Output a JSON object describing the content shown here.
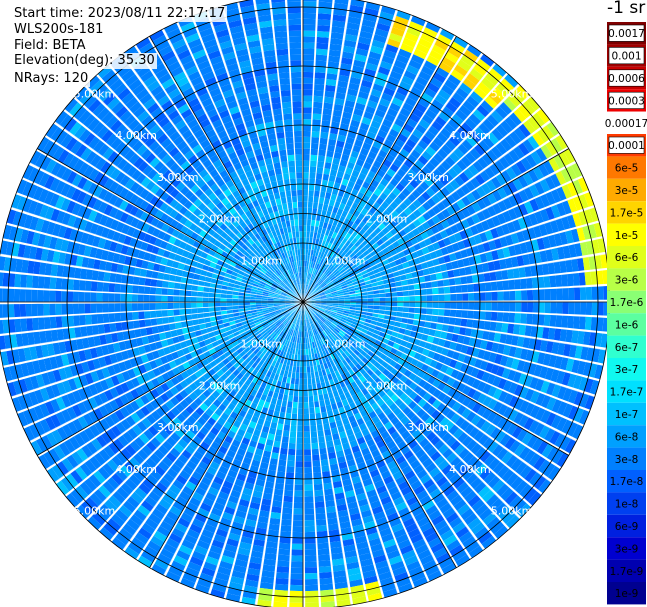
{
  "header": {
    "start_time": "Start time: 2023/08/11 22:17:17",
    "instrument": "WLS200s-181",
    "field": "Field: BETA",
    "elevation": "Elevation(deg): 35.30",
    "nrays": "NRays: 120"
  },
  "chart_data": {
    "type": "heatmap",
    "projection": "polar PPI",
    "title": "",
    "nrays": 120,
    "range_rings_km": [
      1.0,
      2.0,
      3.0,
      4.0,
      5.0
    ],
    "range_ring_labels": [
      "1.00km",
      "2.00km",
      "3.00km",
      "4.00km",
      "5.00km"
    ],
    "extra_ring_km": 1.5,
    "max_range_km": 5.2,
    "spokes_deg": [
      0,
      30,
      60,
      90,
      120,
      150,
      180,
      210,
      240,
      270,
      300,
      330
    ],
    "colorbar": {
      "unit_label": "-1 sr",
      "tick_labels": [
        "0.0017",
        "0.001",
        "0.0006",
        "0.0003",
        "0.00017",
        "0.0001",
        "6e-5",
        "3e-5",
        "1.7e-5",
        "1e-5",
        "6e-6",
        "3e-6",
        "1.7e-6",
        "1e-6",
        "6e-7",
        "3e-7",
        "1.7e-7",
        "1e-7",
        "6e-8",
        "3e-8",
        "1.7e-8",
        "1e-8",
        "6e-9",
        "3e-9",
        "1.7e-9",
        "1e-9"
      ],
      "colors": [
        "#800000",
        "#a00000",
        "#c80000",
        "#ee0000",
        "#ffffff",
        "#ff3a00",
        "#ff7800",
        "#ffaa00",
        "#ffd400",
        "#ffff00",
        "#e0ff1a",
        "#b8ff47",
        "#8aff74",
        "#5cffa0",
        "#30ffd0",
        "#10f8f0",
        "#00e0ff",
        "#00c0ff",
        "#00a0ff",
        "#0080ff",
        "#0060ff",
        "#0040f0",
        "#0020e0",
        "#0000d0",
        "#0000b0",
        "#000090"
      ]
    },
    "color_level_by_range_km": [
      {
        "range_km": 0.5,
        "level": 18
      },
      {
        "range_km": 1.5,
        "level": 18
      },
      {
        "range_km": 2.5,
        "level": 19
      },
      {
        "range_km": 3.5,
        "level": 19
      },
      {
        "range_km": 4.5,
        "level": 19
      }
    ],
    "enhanced_arcs": [
      {
        "azimuth_deg": [
          18,
          45
        ],
        "range_km": [
          4.6,
          5.1
        ],
        "level": 9
      },
      {
        "azimuth_deg": [
          45,
          88
        ],
        "range_km": [
          4.8,
          5.2
        ],
        "level": 10
      },
      {
        "azimuth_deg": [
          165,
          188
        ],
        "range_km": [
          4.9,
          5.2
        ],
        "level": 10
      }
    ]
  }
}
